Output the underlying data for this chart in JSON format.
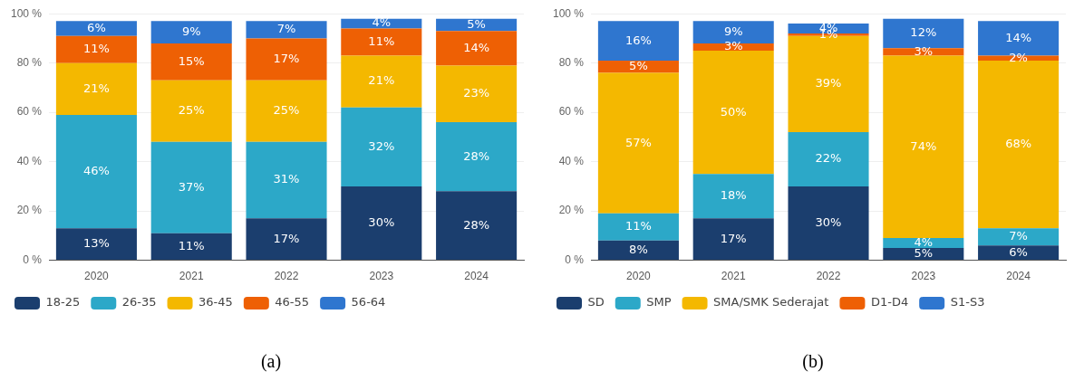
{
  "chart_data": [
    {
      "type": "bar",
      "stacked": true,
      "categories": [
        "2020",
        "2021",
        "2022",
        "2023",
        "2024"
      ],
      "series": [
        {
          "name": "18-25",
          "color": "#1b3e6e",
          "values": [
            13,
            11,
            17,
            30,
            28
          ],
          "value_labels": [
            "13%",
            "11%",
            "17%",
            "30%",
            "28%"
          ]
        },
        {
          "name": "26-35",
          "color": "#2ca8c8",
          "values": [
            46,
            37,
            31,
            32,
            28
          ],
          "value_labels": [
            "46%",
            "37%",
            "31%",
            "32%",
            "28%"
          ]
        },
        {
          "name": "36-45",
          "color": "#f4b800",
          "values": [
            21,
            25,
            25,
            21,
            23
          ],
          "value_labels": [
            "21%",
            "25%",
            "25%",
            "21%",
            "23%"
          ]
        },
        {
          "name": "46-55",
          "color": "#ee6004",
          "values": [
            11,
            15,
            17,
            11,
            14
          ],
          "value_labels": [
            "11%",
            "15%",
            "17%",
            "11%",
            "14%"
          ]
        },
        {
          "name": "56-64",
          "color": "#2f76cf",
          "values": [
            6,
            9,
            7,
            4,
            5
          ],
          "value_labels": [
            "6%",
            "9%",
            "7%",
            "4%",
            "5%"
          ]
        }
      ],
      "ylim": [
        0,
        100
      ],
      "yticks": [
        {
          "value": 0,
          "label": "0 %"
        },
        {
          "value": 20,
          "label": "20 %"
        },
        {
          "value": 40,
          "label": "40 %"
        },
        {
          "value": 60,
          "label": "60 %"
        },
        {
          "value": 80,
          "label": "80 %"
        },
        {
          "value": 100,
          "label": "100 %"
        }
      ],
      "grid": "y",
      "legend": "bottom",
      "annotations": [
        "(a)"
      ]
    },
    {
      "type": "bar",
      "stacked": true,
      "categories": [
        "2020",
        "2021",
        "2022",
        "2023",
        "2024"
      ],
      "series": [
        {
          "name": "SD",
          "color": "#1b3e6e",
          "values": [
            8,
            17,
            30,
            5,
            6
          ],
          "value_labels": [
            "8%",
            "17%",
            "30%",
            "5%",
            "6%"
          ]
        },
        {
          "name": "SMP",
          "color": "#2ca8c8",
          "values": [
            11,
            18,
            22,
            4,
            7
          ],
          "value_labels": [
            "11%",
            "18%",
            "22%",
            "4%",
            "7%"
          ]
        },
        {
          "name": "SMA/SMK Sederajat",
          "color": "#f4b800",
          "values": [
            57,
            50,
            39,
            74,
            68
          ],
          "value_labels": [
            "57%",
            "50%",
            "39%",
            "74%",
            "68%"
          ]
        },
        {
          "name": "D1-D4",
          "color": "#ee6004",
          "values": [
            5,
            3,
            1,
            3,
            2
          ],
          "value_labels": [
            "5%",
            "3%",
            "1%",
            "3%",
            "2%"
          ]
        },
        {
          "name": "S1-S3",
          "color": "#2f76cf",
          "values": [
            16,
            9,
            4,
            12,
            14
          ],
          "value_labels": [
            "16%",
            "9%",
            "4%",
            "12%",
            "14%"
          ]
        }
      ],
      "ylim": [
        0,
        100
      ],
      "yticks": [
        {
          "value": 0,
          "label": "0 %"
        },
        {
          "value": 20,
          "label": "20 %"
        },
        {
          "value": 40,
          "label": "40 %"
        },
        {
          "value": 60,
          "label": "60 %"
        },
        {
          "value": 80,
          "label": "80 %"
        },
        {
          "value": 100,
          "label": "100 %"
        }
      ],
      "grid": "y",
      "legend": "bottom",
      "annotations": [
        "(b)"
      ]
    }
  ]
}
